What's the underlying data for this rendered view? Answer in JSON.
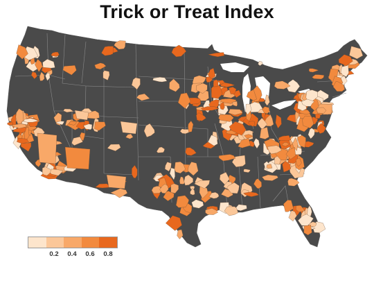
{
  "title": "Trick or Treat Index",
  "colors": {
    "land": "#4a4a4a",
    "borders": "#8a8a8a",
    "scale": [
      "#fde5cc",
      "#fbc799",
      "#f8a868",
      "#f28a3e",
      "#e8681e"
    ]
  },
  "legend": {
    "ticks": [
      "0.2",
      "0.4",
      "0.6",
      "0.8"
    ]
  }
}
